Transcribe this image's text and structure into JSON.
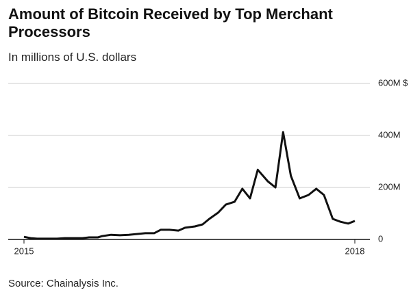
{
  "chart_data": {
    "type": "line",
    "title": "Amount of Bitcoin Received by Top Merchant Processors",
    "subtitle": "In millions of U.S. dollars",
    "source": "Source: Chainalysis Inc.",
    "x": [
      2015,
      2015.06,
      2015.12,
      2015.22,
      2015.3,
      2015.37,
      2015.44,
      2015.53,
      2015.59,
      2015.67,
      2015.71,
      2015.79,
      2015.87,
      2015.95,
      2016.03,
      2016.1,
      2016.18,
      2016.24,
      2016.32,
      2016.4,
      2016.46,
      2016.55,
      2016.62,
      2016.68,
      2016.76,
      2016.83,
      2016.91,
      2016.98,
      2017.05,
      2017.12,
      2017.21,
      2017.28,
      2017.35,
      2017.42,
      2017.5,
      2017.58,
      2017.65,
      2017.72,
      2017.8,
      2017.87,
      2017.94,
      2018
    ],
    "series": [
      {
        "name": "Bitcoin received",
        "color": "#111111",
        "values": [
          10,
          5,
          3,
          3,
          3,
          5,
          5,
          5,
          8,
          8,
          13,
          18,
          16,
          18,
          21,
          24,
          24,
          37,
          37,
          34,
          45,
          50,
          58,
          79,
          103,
          134,
          145,
          195,
          158,
          268,
          224,
          200,
          413,
          245,
          158,
          171,
          195,
          171,
          79,
          68,
          61,
          71
        ]
      }
    ],
    "xlim": [
      2015,
      2018
    ],
    "xticks": [
      2015,
      2018
    ],
    "ylim": [
      0,
      600
    ],
    "yticks": [
      {
        "value": 0,
        "label": "0"
      },
      {
        "value": 200,
        "label": "200M"
      },
      {
        "value": 400,
        "label": "400M"
      },
      {
        "value": 600,
        "label": "600M $"
      }
    ],
    "grid": true
  }
}
